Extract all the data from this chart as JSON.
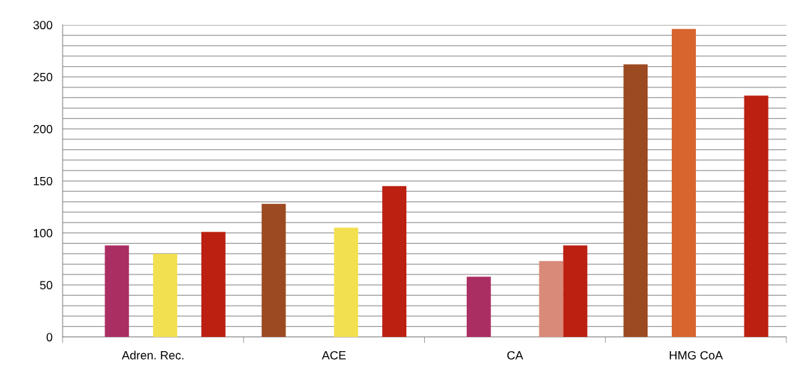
{
  "chart_data": {
    "type": "bar",
    "categories": [
      "Adren. Rec.",
      "ACE",
      "CA",
      "HMG CoA"
    ],
    "series": [
      {
        "color": "#9c4a22",
        "values": [
          null,
          128,
          null,
          262
        ]
      },
      {
        "color": "#aa2e62",
        "values": [
          88,
          null,
          58,
          null
        ]
      },
      {
        "color": "#d8642e",
        "values": [
          null,
          null,
          null,
          296
        ]
      },
      {
        "color": "#f2e050",
        "values": [
          80,
          105,
          null,
          null
        ]
      },
      {
        "color": "#d98a78",
        "values": [
          null,
          null,
          73,
          null
        ]
      },
      {
        "color": "#bb2011",
        "values": [
          101,
          145,
          88,
          232
        ]
      }
    ],
    "ylim": [
      0,
      300
    ],
    "yticks": [
      0,
      {
        "value": 10,
        "label": null
      },
      {
        "value": 20,
        "label": null
      },
      {
        "value": 30,
        "label": null
      },
      {
        "value": 40,
        "label": null
      },
      50,
      {
        "value": 60,
        "label": null
      },
      {
        "value": 70,
        "label": null
      },
      {
        "value": 80,
        "label": null
      },
      {
        "value": 90,
        "label": null
      },
      100,
      {
        "value": 110,
        "label": null
      },
      {
        "value": 120,
        "label": null
      },
      {
        "value": 130,
        "label": null
      },
      {
        "value": 140,
        "label": null
      },
      150,
      {
        "value": 160,
        "label": null
      },
      {
        "value": 170,
        "label": null
      },
      {
        "value": 180,
        "label": null
      },
      {
        "value": 190,
        "label": null
      },
      200,
      {
        "value": 210,
        "label": null
      },
      {
        "value": 220,
        "label": null
      },
      {
        "value": 230,
        "label": null
      },
      {
        "value": 240,
        "label": null
      },
      250,
      {
        "value": 260,
        "label": null
      },
      {
        "value": 270,
        "label": null
      },
      {
        "value": 280,
        "label": null
      },
      {
        "value": 290,
        "label": null
      },
      300
    ],
    "grid": "y"
  }
}
